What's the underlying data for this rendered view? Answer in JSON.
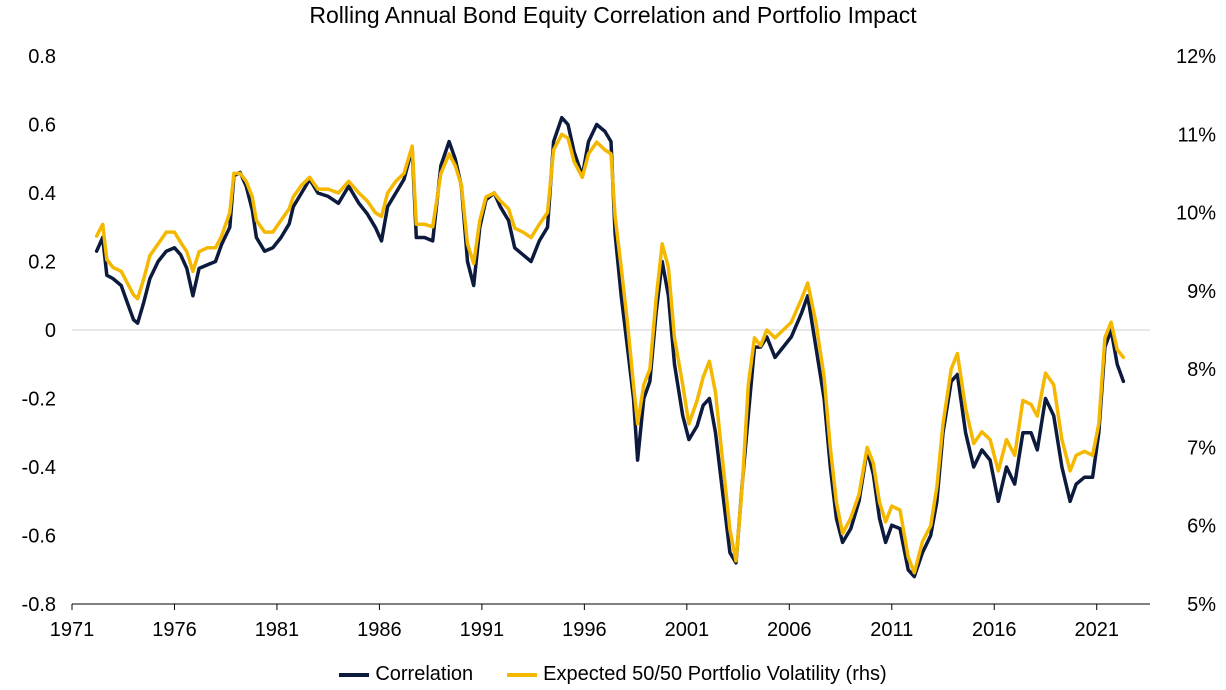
{
  "chart_data": {
    "type": "line",
    "title": "Rolling Annual Bond Equity Correlation and Portfolio Impact",
    "x_ticks": [
      "1971",
      "1976",
      "1981",
      "1986",
      "1991",
      "1996",
      "2001",
      "2006",
      "2011",
      "2016",
      "2021"
    ],
    "xlim": [
      1971,
      2023.6
    ],
    "y_left": {
      "ticks": [
        "0.8",
        "0.6",
        "0.4",
        "0.2",
        "0",
        "-0.2",
        "-0.4",
        "-0.6",
        "-0.8"
      ],
      "tick_values": [
        0.8,
        0.6,
        0.4,
        0.2,
        0,
        -0.2,
        -0.4,
        -0.6,
        -0.8
      ],
      "ylim": [
        -0.8,
        0.8
      ]
    },
    "y_right": {
      "ticks": [
        "12%",
        "11%",
        "10%",
        "9%",
        "8%",
        "7%",
        "6%",
        "5%"
      ],
      "tick_values": [
        12,
        11,
        10,
        9,
        8,
        7,
        6,
        5
      ],
      "ylim": [
        5,
        12
      ]
    },
    "grid": false,
    "zero_line": true,
    "legend_position": "bottom",
    "colors": {
      "correlation": "#0c1a3d",
      "volatility": "#f5b800",
      "axis": "#000000",
      "zero_line": "#d0d0d0"
    },
    "series": [
      {
        "name": "Correlation",
        "axis": "left",
        "points": [
          [
            1972.2,
            0.23
          ],
          [
            1972.5,
            0.27
          ],
          [
            1972.7,
            0.16
          ],
          [
            1973.0,
            0.15
          ],
          [
            1973.4,
            0.13
          ],
          [
            1973.7,
            0.08
          ],
          [
            1974.0,
            0.03
          ],
          [
            1974.2,
            0.02
          ],
          [
            1974.5,
            0.08
          ],
          [
            1974.8,
            0.15
          ],
          [
            1975.2,
            0.2
          ],
          [
            1975.6,
            0.23
          ],
          [
            1976.0,
            0.24
          ],
          [
            1976.3,
            0.22
          ],
          [
            1976.6,
            0.18
          ],
          [
            1976.9,
            0.1
          ],
          [
            1977.2,
            0.18
          ],
          [
            1977.6,
            0.19
          ],
          [
            1978.0,
            0.2
          ],
          [
            1978.3,
            0.25
          ],
          [
            1978.7,
            0.3
          ],
          [
            1978.9,
            0.45
          ],
          [
            1979.2,
            0.46
          ],
          [
            1979.5,
            0.42
          ],
          [
            1979.8,
            0.35
          ],
          [
            1980.0,
            0.27
          ],
          [
            1980.4,
            0.23
          ],
          [
            1980.8,
            0.24
          ],
          [
            1981.2,
            0.27
          ],
          [
            1981.6,
            0.31
          ],
          [
            1981.8,
            0.36
          ],
          [
            1982.2,
            0.4
          ],
          [
            1982.6,
            0.44
          ],
          [
            1983.0,
            0.4
          ],
          [
            1983.5,
            0.39
          ],
          [
            1984.0,
            0.37
          ],
          [
            1984.5,
            0.42
          ],
          [
            1985.0,
            0.37
          ],
          [
            1985.4,
            0.34
          ],
          [
            1985.8,
            0.3
          ],
          [
            1986.1,
            0.26
          ],
          [
            1986.4,
            0.36
          ],
          [
            1986.8,
            0.4
          ],
          [
            1987.2,
            0.44
          ],
          [
            1987.6,
            0.53
          ],
          [
            1987.8,
            0.27
          ],
          [
            1988.2,
            0.27
          ],
          [
            1988.6,
            0.26
          ],
          [
            1989.0,
            0.48
          ],
          [
            1989.4,
            0.55
          ],
          [
            1989.7,
            0.5
          ],
          [
            1990.0,
            0.42
          ],
          [
            1990.3,
            0.2
          ],
          [
            1990.6,
            0.13
          ],
          [
            1990.9,
            0.3
          ],
          [
            1991.2,
            0.38
          ],
          [
            1991.6,
            0.4
          ],
          [
            1991.9,
            0.36
          ],
          [
            1992.3,
            0.32
          ],
          [
            1992.6,
            0.24
          ],
          [
            1993.0,
            0.22
          ],
          [
            1993.4,
            0.2
          ],
          [
            1993.8,
            0.26
          ],
          [
            1994.2,
            0.3
          ],
          [
            1994.5,
            0.55
          ],
          [
            1994.9,
            0.62
          ],
          [
            1995.2,
            0.6
          ],
          [
            1995.5,
            0.52
          ],
          [
            1995.9,
            0.45
          ],
          [
            1996.2,
            0.55
          ],
          [
            1996.6,
            0.6
          ],
          [
            1997.0,
            0.58
          ],
          [
            1997.3,
            0.55
          ],
          [
            1997.5,
            0.28
          ],
          [
            1997.8,
            0.1
          ],
          [
            1998.1,
            -0.05
          ],
          [
            1998.4,
            -0.2
          ],
          [
            1998.6,
            -0.38
          ],
          [
            1998.9,
            -0.2
          ],
          [
            1999.2,
            -0.15
          ],
          [
            1999.5,
            0.05
          ],
          [
            1999.8,
            0.2
          ],
          [
            2000.1,
            0.1
          ],
          [
            2000.4,
            -0.1
          ],
          [
            2000.8,
            -0.25
          ],
          [
            2001.1,
            -0.32
          ],
          [
            2001.5,
            -0.28
          ],
          [
            2001.8,
            -0.22
          ],
          [
            2002.1,
            -0.2
          ],
          [
            2002.4,
            -0.3
          ],
          [
            2002.8,
            -0.5
          ],
          [
            2003.1,
            -0.65
          ],
          [
            2003.4,
            -0.68
          ],
          [
            2003.7,
            -0.45
          ],
          [
            2004.0,
            -0.25
          ],
          [
            2004.3,
            -0.05
          ],
          [
            2004.6,
            -0.05
          ],
          [
            2004.9,
            -0.02
          ],
          [
            2005.3,
            -0.08
          ],
          [
            2005.7,
            -0.05
          ],
          [
            2006.1,
            -0.02
          ],
          [
            2006.6,
            0.05
          ],
          [
            2006.9,
            0.1
          ],
          [
            2007.3,
            -0.05
          ],
          [
            2007.7,
            -0.2
          ],
          [
            2008.0,
            -0.4
          ],
          [
            2008.3,
            -0.55
          ],
          [
            2008.6,
            -0.62
          ],
          [
            2009.0,
            -0.58
          ],
          [
            2009.4,
            -0.5
          ],
          [
            2009.8,
            -0.35
          ],
          [
            2010.1,
            -0.42
          ],
          [
            2010.4,
            -0.55
          ],
          [
            2010.7,
            -0.62
          ],
          [
            2011.0,
            -0.57
          ],
          [
            2011.4,
            -0.58
          ],
          [
            2011.8,
            -0.7
          ],
          [
            2012.1,
            -0.72
          ],
          [
            2012.5,
            -0.65
          ],
          [
            2012.9,
            -0.6
          ],
          [
            2013.2,
            -0.5
          ],
          [
            2013.5,
            -0.3
          ],
          [
            2013.9,
            -0.15
          ],
          [
            2014.2,
            -0.13
          ],
          [
            2014.6,
            -0.3
          ],
          [
            2015.0,
            -0.4
          ],
          [
            2015.4,
            -0.35
          ],
          [
            2015.8,
            -0.38
          ],
          [
            2016.2,
            -0.5
          ],
          [
            2016.6,
            -0.4
          ],
          [
            2017.0,
            -0.45
          ],
          [
            2017.4,
            -0.3
          ],
          [
            2017.8,
            -0.3
          ],
          [
            2018.1,
            -0.35
          ],
          [
            2018.5,
            -0.2
          ],
          [
            2018.9,
            -0.25
          ],
          [
            2019.3,
            -0.4
          ],
          [
            2019.7,
            -0.5
          ],
          [
            2020.0,
            -0.45
          ],
          [
            2020.4,
            -0.43
          ],
          [
            2020.8,
            -0.43
          ],
          [
            2021.1,
            -0.3
          ],
          [
            2021.4,
            -0.05
          ],
          [
            2021.7,
            0.0
          ],
          [
            2022.0,
            -0.1
          ],
          [
            2022.3,
            -0.15
          ]
        ]
      },
      {
        "name": "Expected 50/50 Portfolio Volatility (rhs)",
        "axis": "right",
        "points": [
          [
            1972.2,
            9.7
          ],
          [
            1972.5,
            9.85
          ],
          [
            1972.7,
            9.4
          ],
          [
            1973.0,
            9.3
          ],
          [
            1973.4,
            9.25
          ],
          [
            1973.7,
            9.1
          ],
          [
            1974.0,
            8.95
          ],
          [
            1974.2,
            8.9
          ],
          [
            1974.5,
            9.15
          ],
          [
            1974.8,
            9.45
          ],
          [
            1975.2,
            9.6
          ],
          [
            1975.6,
            9.75
          ],
          [
            1976.0,
            9.75
          ],
          [
            1976.3,
            9.62
          ],
          [
            1976.6,
            9.5
          ],
          [
            1976.9,
            9.25
          ],
          [
            1977.2,
            9.5
          ],
          [
            1977.6,
            9.55
          ],
          [
            1978.0,
            9.55
          ],
          [
            1978.3,
            9.7
          ],
          [
            1978.7,
            10.0
          ],
          [
            1978.9,
            10.5
          ],
          [
            1979.2,
            10.5
          ],
          [
            1979.5,
            10.4
          ],
          [
            1979.8,
            10.2
          ],
          [
            1980.0,
            9.9
          ],
          [
            1980.4,
            9.75
          ],
          [
            1980.8,
            9.75
          ],
          [
            1981.2,
            9.9
          ],
          [
            1981.6,
            10.05
          ],
          [
            1981.8,
            10.2
          ],
          [
            1982.2,
            10.35
          ],
          [
            1982.6,
            10.45
          ],
          [
            1983.0,
            10.3
          ],
          [
            1983.5,
            10.3
          ],
          [
            1984.0,
            10.25
          ],
          [
            1984.5,
            10.4
          ],
          [
            1985.0,
            10.25
          ],
          [
            1985.4,
            10.15
          ],
          [
            1985.8,
            10.0
          ],
          [
            1986.1,
            9.95
          ],
          [
            1986.4,
            10.25
          ],
          [
            1986.8,
            10.4
          ],
          [
            1987.2,
            10.5
          ],
          [
            1987.6,
            10.85
          ],
          [
            1987.8,
            9.85
          ],
          [
            1988.2,
            9.85
          ],
          [
            1988.6,
            9.82
          ],
          [
            1989.0,
            10.5
          ],
          [
            1989.4,
            10.75
          ],
          [
            1989.7,
            10.6
          ],
          [
            1990.0,
            10.35
          ],
          [
            1990.3,
            9.6
          ],
          [
            1990.6,
            9.35
          ],
          [
            1990.9,
            9.9
          ],
          [
            1991.2,
            10.2
          ],
          [
            1991.6,
            10.25
          ],
          [
            1991.9,
            10.15
          ],
          [
            1992.3,
            10.05
          ],
          [
            1992.6,
            9.8
          ],
          [
            1993.0,
            9.75
          ],
          [
            1993.4,
            9.68
          ],
          [
            1993.8,
            9.85
          ],
          [
            1994.2,
            10.0
          ],
          [
            1994.5,
            10.8
          ],
          [
            1994.9,
            11.0
          ],
          [
            1995.2,
            10.95
          ],
          [
            1995.5,
            10.65
          ],
          [
            1995.9,
            10.45
          ],
          [
            1996.2,
            10.75
          ],
          [
            1996.6,
            10.9
          ],
          [
            1997.0,
            10.8
          ],
          [
            1997.3,
            10.75
          ],
          [
            1997.5,
            9.95
          ],
          [
            1997.8,
            9.3
          ],
          [
            1998.1,
            8.6
          ],
          [
            1998.4,
            7.8
          ],
          [
            1998.6,
            7.3
          ],
          [
            1998.9,
            7.8
          ],
          [
            1999.2,
            8.0
          ],
          [
            1999.5,
            8.9
          ],
          [
            1999.8,
            9.6
          ],
          [
            2000.1,
            9.3
          ],
          [
            2000.4,
            8.4
          ],
          [
            2000.8,
            7.8
          ],
          [
            2001.1,
            7.3
          ],
          [
            2001.5,
            7.6
          ],
          [
            2001.8,
            7.9
          ],
          [
            2002.1,
            8.1
          ],
          [
            2002.4,
            7.7
          ],
          [
            2002.8,
            6.7
          ],
          [
            2003.1,
            5.95
          ],
          [
            2003.4,
            5.55
          ],
          [
            2003.7,
            6.5
          ],
          [
            2004.0,
            7.8
          ],
          [
            2004.3,
            8.4
          ],
          [
            2004.6,
            8.3
          ],
          [
            2004.9,
            8.5
          ],
          [
            2005.3,
            8.4
          ],
          [
            2005.7,
            8.5
          ],
          [
            2006.1,
            8.6
          ],
          [
            2006.6,
            8.9
          ],
          [
            2006.9,
            9.1
          ],
          [
            2007.3,
            8.6
          ],
          [
            2007.7,
            7.9
          ],
          [
            2008.0,
            7.0
          ],
          [
            2008.3,
            6.3
          ],
          [
            2008.6,
            5.9
          ],
          [
            2009.0,
            6.1
          ],
          [
            2009.4,
            6.4
          ],
          [
            2009.8,
            7.0
          ],
          [
            2010.1,
            6.8
          ],
          [
            2010.4,
            6.3
          ],
          [
            2010.7,
            6.05
          ],
          [
            2011.0,
            6.25
          ],
          [
            2011.4,
            6.2
          ],
          [
            2011.8,
            5.6
          ],
          [
            2012.1,
            5.4
          ],
          [
            2012.5,
            5.8
          ],
          [
            2012.9,
            6.0
          ],
          [
            2013.2,
            6.5
          ],
          [
            2013.5,
            7.3
          ],
          [
            2013.9,
            8.0
          ],
          [
            2014.2,
            8.2
          ],
          [
            2014.6,
            7.5
          ],
          [
            2015.0,
            7.05
          ],
          [
            2015.4,
            7.2
          ],
          [
            2015.8,
            7.1
          ],
          [
            2016.2,
            6.7
          ],
          [
            2016.6,
            7.1
          ],
          [
            2017.0,
            6.9
          ],
          [
            2017.4,
            7.6
          ],
          [
            2017.8,
            7.55
          ],
          [
            2018.1,
            7.4
          ],
          [
            2018.5,
            7.95
          ],
          [
            2018.9,
            7.8
          ],
          [
            2019.3,
            7.1
          ],
          [
            2019.7,
            6.7
          ],
          [
            2020.0,
            6.9
          ],
          [
            2020.4,
            6.95
          ],
          [
            2020.8,
            6.9
          ],
          [
            2021.1,
            7.3
          ],
          [
            2021.4,
            8.4
          ],
          [
            2021.7,
            8.6
          ],
          [
            2022.0,
            8.25
          ],
          [
            2022.3,
            8.15
          ]
        ]
      }
    ]
  }
}
